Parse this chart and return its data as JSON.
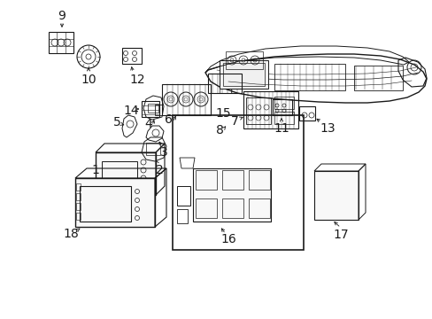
{
  "bg_color": "#ffffff",
  "line_color": "#1a1a1a",
  "lw": 0.6,
  "fig_w": 4.89,
  "fig_h": 3.6,
  "dpi": 100
}
